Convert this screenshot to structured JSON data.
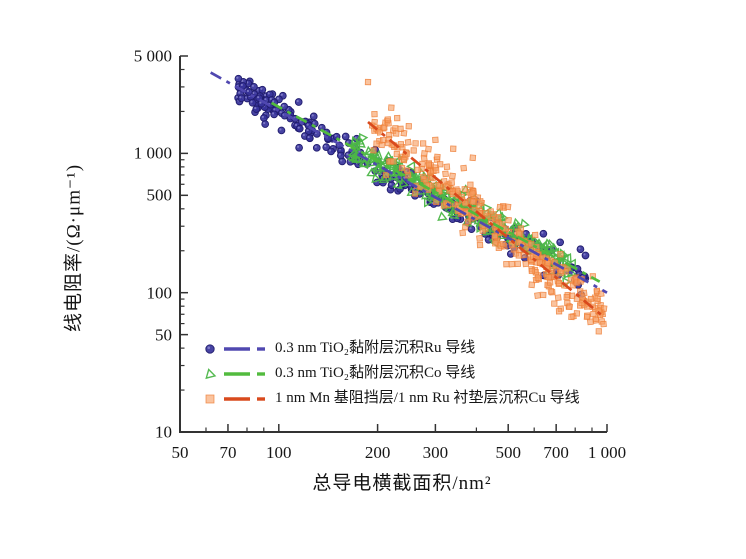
{
  "figure": {
    "background": "#ffffff",
    "axis_color": "#333333",
    "text_color": "#161616"
  },
  "axes": {
    "x": {
      "title": "总导电横截面积/nm²",
      "scale": "log",
      "range": [
        50,
        1000
      ],
      "major_ticks": [
        {
          "v": 50,
          "label": "50"
        },
        {
          "v": 70,
          "label": "70"
        },
        {
          "v": 100,
          "label": "100"
        },
        {
          "v": 200,
          "label": "200"
        },
        {
          "v": 300,
          "label": "300"
        },
        {
          "v": 500,
          "label": "500"
        },
        {
          "v": 700,
          "label": "700"
        },
        {
          "v": 1000,
          "label": "1 000"
        }
      ],
      "minor_ticks": [
        60,
        80,
        90,
        400,
        600,
        800,
        900
      ]
    },
    "y": {
      "title": "线电阻率/(Ω·μm⁻¹)",
      "scale": "log",
      "range": [
        10,
        5000
      ],
      "major_ticks": [
        {
          "v": 10,
          "label": "10"
        },
        {
          "v": 50,
          "label": "50"
        },
        {
          "v": 100,
          "label": "100"
        },
        {
          "v": 500,
          "label": "500"
        },
        {
          "v": 1000,
          "label": "1 000"
        },
        {
          "v": 5000,
          "label": "5 000"
        }
      ],
      "minor_ticks": [
        20,
        30,
        40,
        60,
        70,
        80,
        90,
        200,
        300,
        400,
        600,
        700,
        800,
        900,
        2000,
        3000,
        4000
      ]
    }
  },
  "chart_data": {
    "type": "scatter",
    "title": "",
    "xlabel": "总导电横截面积/nm²",
    "ylabel": "线电阻率/(Ω·μm⁻¹)",
    "xscale": "log",
    "yscale": "log",
    "xlim": [
      50,
      1000
    ],
    "ylim": [
      10,
      5000
    ],
    "grid": false,
    "legend_position": "lower-left-inside",
    "seed": 1316,
    "series": [
      {
        "name": "0.3 nm TiO₂黏附层沉积Ru 导线",
        "marker": "circle",
        "marker_color": "#37339b",
        "marker_edge": "#211d6e",
        "line_color": "#5048b0",
        "line_style": "dashed",
        "trend_line": {
          "x": [
            62,
            1000
          ],
          "y": [
            3800,
            100
          ]
        },
        "scatter_cloud": {
          "count": 270,
          "x_range": [
            75,
            860
          ],
          "log_sigma": 0.055,
          "x_bias": 1.35
        },
        "outlier_points": [
          [
            720,
            230
          ],
          [
            830,
            205
          ],
          [
            860,
            185
          ],
          [
            640,
            265
          ]
        ]
      },
      {
        "name": "0.3 nm TiO₂黏附层沉积Co 导线",
        "marker": "triangle-open",
        "marker_color": "#4cb648",
        "marker_edge": "#3fae3c",
        "line_color": "#52bb3e",
        "line_style": "dashed",
        "trend_line": {
          "x": [
            95,
            950
          ],
          "y": [
            2300,
            120
          ]
        },
        "scatter_cloud": {
          "count": 235,
          "x_range": [
            168,
            790
          ],
          "log_sigma": 0.055,
          "x_bias": 1.0
        },
        "outlier_points": []
      },
      {
        "name": "1 nm Mn 基阻挡层/1 nm Ru 衬垫层沉积Cu 导线",
        "marker": "square",
        "marker_color": "#f79e63",
        "marker_edge": "#ed7d35",
        "line_color": "#d94a1d",
        "line_style": "dashed",
        "trend_line": {
          "x": [
            187,
            985
          ],
          "y": [
            1680,
            66
          ]
        },
        "scatter_cloud": {
          "count": 340,
          "x_range": [
            190,
            980
          ],
          "log_sigma": 0.095,
          "x_bias": 0.85
        },
        "outlier_points": [
          [
            187,
            3250
          ],
          [
            215,
            1750
          ],
          [
            235,
            1500
          ],
          [
            300,
            1250
          ],
          [
            340,
            1080
          ],
          [
            390,
            930
          ]
        ]
      }
    ]
  }
}
